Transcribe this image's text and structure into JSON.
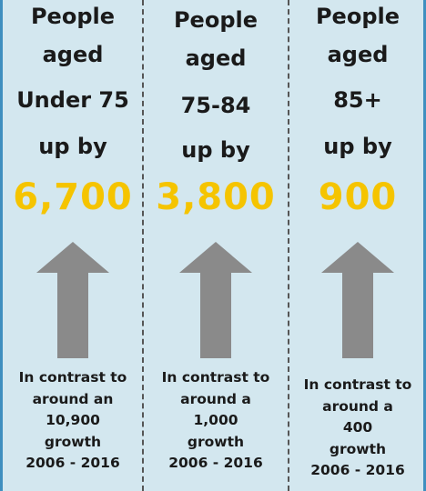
{
  "columns": [
    {
      "line1": "People",
      "line2": "aged",
      "age": "Under 75",
      "upby": "up by",
      "value": "6,700",
      "note": [
        "In contrast to",
        "around an",
        "10,900",
        "growth",
        "2006 - 2016"
      ]
    },
    {
      "line1": "People",
      "line2": "aged",
      "age": "75-84",
      "upby": "up by",
      "value": "3,800",
      "note": [
        "In contrast to",
        "around a",
        "1,000",
        "growth",
        "2006 - 2016"
      ]
    },
    {
      "line1": "People",
      "line2": "aged",
      "age": "85+",
      "upby": "up by",
      "value": "900",
      "note": [
        "In contrast to",
        "around a",
        "400",
        "growth",
        "2006 - 2016"
      ]
    }
  ],
  "icons": {
    "arrow": "up-arrow-icon"
  },
  "colors": {
    "background": "#d3e7ef",
    "value": "#f5c400",
    "arrow": "#8a8a8a",
    "border": "#3f8fbf"
  }
}
